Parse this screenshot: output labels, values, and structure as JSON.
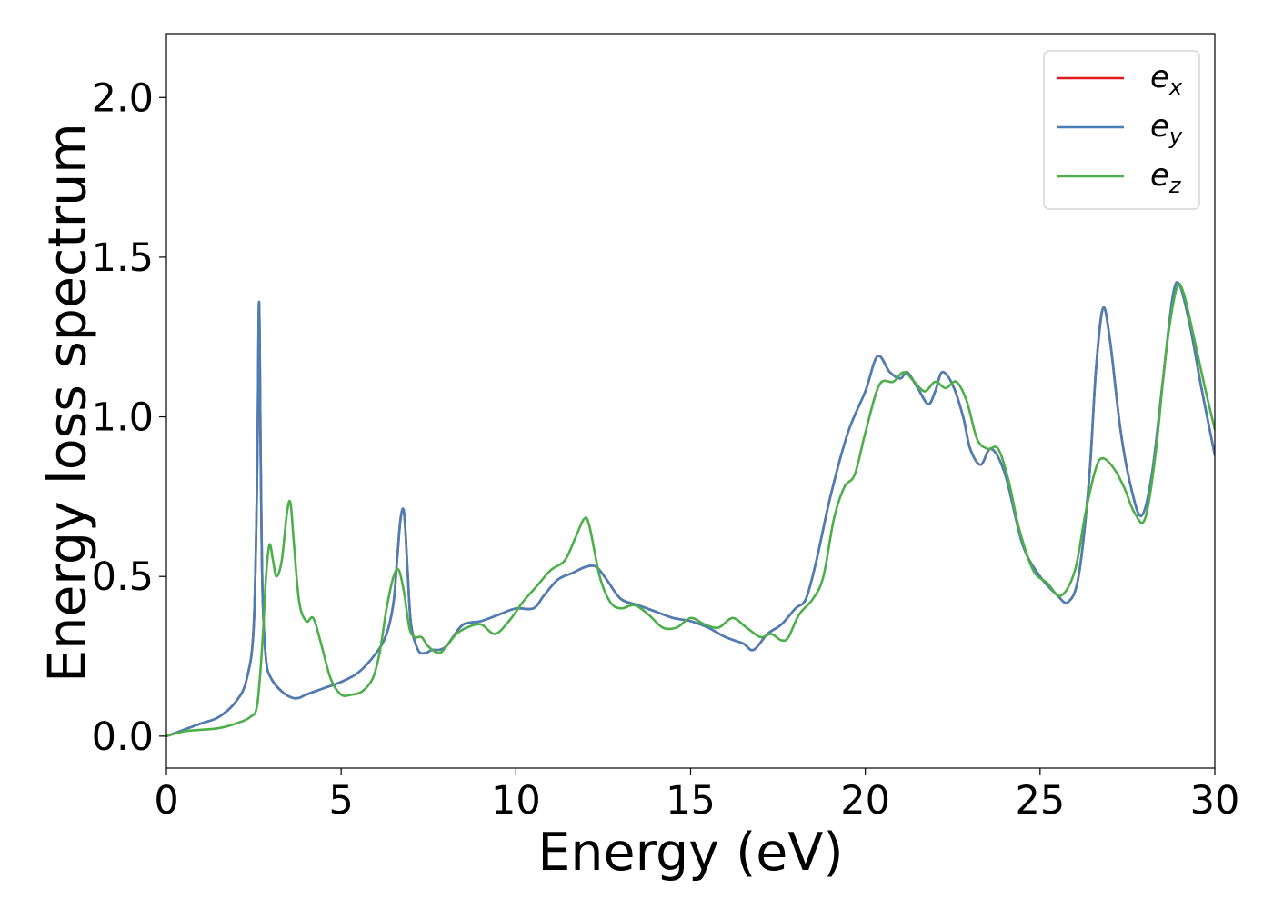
{
  "chart_data": {
    "type": "line",
    "title": "",
    "xlabel": "Energy (eV)",
    "ylabel": "Energy loss spectrum",
    "xlim": [
      0,
      30
    ],
    "ylim": [
      -0.1,
      2.2
    ],
    "xticks": [
      0,
      5,
      10,
      15,
      20,
      25,
      30
    ],
    "xtick_labels": [
      "0",
      "5",
      "10",
      "15",
      "20",
      "25",
      "30"
    ],
    "yticks": [
      0.0,
      0.5,
      1.0,
      1.5,
      2.0
    ],
    "ytick_labels": [
      "0.0",
      "0.5",
      "1.0",
      "1.5",
      "2.0"
    ],
    "grid": false,
    "legend_position": "top-right",
    "series": [
      {
        "name": "e_x",
        "legend_base": "e",
        "legend_sub": "x",
        "color": "#e41a1c",
        "x": [
          0,
          0.5,
          1.0,
          1.5,
          2.0,
          2.3,
          2.5,
          2.6,
          2.65,
          2.7,
          2.75,
          2.85,
          3.0,
          3.3,
          3.6,
          3.8,
          4.0,
          4.5,
          5.0,
          5.5,
          6.0,
          6.3,
          6.5,
          6.6,
          6.7,
          6.8,
          6.9,
          7.0,
          7.2,
          7.4,
          7.6,
          7.8,
          8.0,
          8.2,
          8.5,
          9.0,
          9.5,
          10.0,
          10.5,
          10.8,
          11.2,
          11.6,
          12.0,
          12.3,
          12.6,
          13.0,
          13.5,
          14.0,
          14.5,
          15.0,
          15.5,
          16.0,
          16.5,
          16.8,
          17.2,
          17.6,
          18.0,
          18.3,
          18.6,
          19.0,
          19.5,
          20.0,
          20.35,
          20.7,
          21.0,
          21.2,
          21.5,
          21.8,
          22.0,
          22.2,
          22.5,
          22.8,
          23.0,
          23.3,
          23.6,
          24.0,
          24.5,
          25.0,
          25.5,
          25.8,
          26.1,
          26.4,
          26.6,
          26.8,
          27.0,
          27.3,
          27.6,
          27.9,
          28.2,
          28.5,
          28.8,
          29.0,
          29.3,
          29.6,
          30.0
        ],
        "y": [
          0.0,
          0.02,
          0.04,
          0.06,
          0.11,
          0.18,
          0.35,
          0.85,
          1.36,
          0.85,
          0.45,
          0.24,
          0.18,
          0.14,
          0.12,
          0.12,
          0.13,
          0.15,
          0.17,
          0.2,
          0.26,
          0.32,
          0.42,
          0.55,
          0.68,
          0.7,
          0.52,
          0.35,
          0.27,
          0.26,
          0.27,
          0.27,
          0.28,
          0.31,
          0.35,
          0.36,
          0.38,
          0.4,
          0.4,
          0.44,
          0.49,
          0.51,
          0.53,
          0.53,
          0.49,
          0.43,
          0.41,
          0.39,
          0.37,
          0.36,
          0.34,
          0.31,
          0.29,
          0.27,
          0.32,
          0.35,
          0.4,
          0.43,
          0.55,
          0.75,
          0.95,
          1.08,
          1.19,
          1.14,
          1.12,
          1.14,
          1.09,
          1.04,
          1.08,
          1.14,
          1.1,
          1.0,
          0.9,
          0.85,
          0.9,
          0.82,
          0.6,
          0.5,
          0.44,
          0.42,
          0.5,
          0.8,
          1.15,
          1.34,
          1.24,
          0.96,
          0.78,
          0.69,
          0.82,
          1.1,
          1.38,
          1.41,
          1.28,
          1.1,
          0.88
        ]
      },
      {
        "name": "e_y",
        "legend_base": "e",
        "legend_sub": "y",
        "color": "#4a7fb5",
        "x": [
          0,
          0.5,
          1.0,
          1.5,
          2.0,
          2.3,
          2.5,
          2.6,
          2.65,
          2.7,
          2.75,
          2.85,
          3.0,
          3.3,
          3.6,
          3.8,
          4.0,
          4.5,
          5.0,
          5.5,
          6.0,
          6.3,
          6.5,
          6.6,
          6.7,
          6.8,
          6.9,
          7.0,
          7.2,
          7.4,
          7.6,
          7.8,
          8.0,
          8.2,
          8.5,
          9.0,
          9.5,
          10.0,
          10.5,
          10.8,
          11.2,
          11.6,
          12.0,
          12.3,
          12.6,
          13.0,
          13.5,
          14.0,
          14.5,
          15.0,
          15.5,
          16.0,
          16.5,
          16.8,
          17.2,
          17.6,
          18.0,
          18.3,
          18.6,
          19.0,
          19.5,
          20.0,
          20.35,
          20.7,
          21.0,
          21.2,
          21.5,
          21.8,
          22.0,
          22.2,
          22.5,
          22.8,
          23.0,
          23.3,
          23.6,
          24.0,
          24.5,
          25.0,
          25.5,
          25.8,
          26.1,
          26.4,
          26.6,
          26.8,
          27.0,
          27.3,
          27.6,
          27.9,
          28.2,
          28.5,
          28.8,
          29.0,
          29.3,
          29.6,
          30.0
        ],
        "y": [
          0.0,
          0.02,
          0.04,
          0.06,
          0.11,
          0.18,
          0.35,
          0.85,
          1.36,
          0.85,
          0.45,
          0.24,
          0.18,
          0.14,
          0.12,
          0.12,
          0.13,
          0.15,
          0.17,
          0.2,
          0.26,
          0.32,
          0.42,
          0.55,
          0.68,
          0.7,
          0.52,
          0.35,
          0.27,
          0.26,
          0.27,
          0.27,
          0.28,
          0.31,
          0.35,
          0.36,
          0.38,
          0.4,
          0.4,
          0.44,
          0.49,
          0.51,
          0.53,
          0.53,
          0.49,
          0.43,
          0.41,
          0.39,
          0.37,
          0.36,
          0.34,
          0.31,
          0.29,
          0.27,
          0.32,
          0.35,
          0.4,
          0.43,
          0.55,
          0.75,
          0.95,
          1.08,
          1.19,
          1.14,
          1.12,
          1.14,
          1.09,
          1.04,
          1.08,
          1.14,
          1.1,
          1.0,
          0.9,
          0.85,
          0.9,
          0.82,
          0.6,
          0.5,
          0.44,
          0.42,
          0.5,
          0.8,
          1.15,
          1.34,
          1.24,
          0.96,
          0.78,
          0.69,
          0.82,
          1.1,
          1.38,
          1.41,
          1.28,
          1.1,
          0.88
        ]
      },
      {
        "name": "e_z",
        "legend_base": "e",
        "legend_sub": "z",
        "color": "#4daf4a",
        "x": [
          0,
          0.5,
          1.0,
          1.5,
          2.0,
          2.4,
          2.6,
          2.75,
          2.85,
          2.95,
          3.05,
          3.15,
          3.3,
          3.45,
          3.55,
          3.65,
          3.8,
          4.0,
          4.2,
          4.4,
          4.7,
          5.0,
          5.3,
          5.6,
          5.9,
          6.1,
          6.3,
          6.5,
          6.65,
          6.8,
          6.95,
          7.1,
          7.3,
          7.5,
          7.8,
          8.0,
          8.3,
          8.6,
          9.0,
          9.4,
          9.8,
          10.2,
          10.6,
          11.0,
          11.4,
          11.7,
          11.95,
          12.1,
          12.4,
          12.7,
          13.0,
          13.4,
          13.8,
          14.2,
          14.6,
          15.0,
          15.4,
          15.8,
          16.2,
          16.6,
          17.0,
          17.3,
          17.6,
          17.8,
          18.1,
          18.5,
          18.8,
          19.1,
          19.4,
          19.7,
          20.0,
          20.4,
          20.8,
          21.1,
          21.4,
          21.7,
          22.0,
          22.3,
          22.6,
          22.9,
          23.2,
          23.5,
          23.8,
          24.1,
          24.4,
          24.8,
          25.2,
          25.6,
          26.0,
          26.3,
          26.6,
          26.8,
          27.1,
          27.4,
          27.7,
          28.0,
          28.3,
          28.6,
          28.9,
          29.1,
          29.4,
          29.7,
          30.0
        ],
        "y": [
          0.0,
          0.015,
          0.02,
          0.025,
          0.04,
          0.06,
          0.1,
          0.3,
          0.5,
          0.6,
          0.55,
          0.5,
          0.55,
          0.7,
          0.73,
          0.6,
          0.42,
          0.36,
          0.37,
          0.3,
          0.18,
          0.13,
          0.13,
          0.14,
          0.18,
          0.26,
          0.4,
          0.5,
          0.52,
          0.45,
          0.34,
          0.31,
          0.31,
          0.28,
          0.26,
          0.28,
          0.32,
          0.34,
          0.35,
          0.32,
          0.36,
          0.42,
          0.47,
          0.52,
          0.55,
          0.62,
          0.68,
          0.66,
          0.5,
          0.42,
          0.4,
          0.41,
          0.38,
          0.34,
          0.34,
          0.37,
          0.35,
          0.34,
          0.37,
          0.34,
          0.31,
          0.32,
          0.3,
          0.31,
          0.38,
          0.43,
          0.5,
          0.68,
          0.78,
          0.82,
          0.95,
          1.1,
          1.11,
          1.14,
          1.11,
          1.08,
          1.11,
          1.09,
          1.11,
          1.05,
          0.93,
          0.9,
          0.9,
          0.8,
          0.65,
          0.52,
          0.48,
          0.44,
          0.52,
          0.7,
          0.84,
          0.87,
          0.84,
          0.78,
          0.7,
          0.68,
          0.88,
          1.2,
          1.4,
          1.39,
          1.25,
          1.1,
          0.96
        ]
      }
    ]
  }
}
